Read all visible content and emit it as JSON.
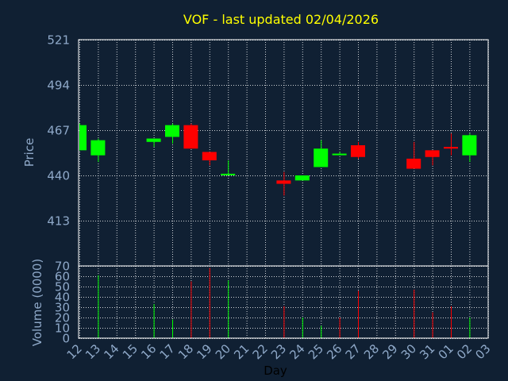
{
  "colors": {
    "background": "#102033",
    "plot_border": "#ffffff",
    "grid": "#ffffff",
    "up": "#00ff00",
    "down": "#ff0000",
    "title": "#ffff00",
    "axis_text": "#8fa9c9"
  },
  "chart_data": [
    {
      "type": "candlestick",
      "title": "VOF - last updated 02/04/2026",
      "ylabel": "Price",
      "yticks": [
        521,
        494,
        467,
        440,
        413
      ],
      "ylim": [
        386,
        521
      ],
      "grid": true,
      "candles": [
        {
          "day": "12",
          "open": 455,
          "high": 471,
          "low": 455,
          "close": 470
        },
        {
          "day": "13",
          "open": 452,
          "high": 462,
          "low": 448,
          "close": 461
        },
        {
          "day": "16",
          "open": 460,
          "high": 462,
          "low": 457,
          "close": 462
        },
        {
          "day": "17",
          "open": 463,
          "high": 471,
          "low": 459,
          "close": 470
        },
        {
          "day": "18",
          "open": 470,
          "high": 471,
          "low": 456,
          "close": 456
        },
        {
          "day": "19",
          "open": 454,
          "high": 454,
          "low": 446,
          "close": 449
        },
        {
          "day": "20",
          "open": 441,
          "high": 449,
          "low": 440,
          "close": 441
        },
        {
          "day": "23",
          "open": 437,
          "high": 442,
          "low": 428,
          "close": 435
        },
        {
          "day": "24",
          "open": 437,
          "high": 440,
          "low": 437,
          "close": 440
        },
        {
          "day": "25",
          "open": 445,
          "high": 461,
          "low": 445,
          "close": 456
        },
        {
          "day": "26",
          "open": 453,
          "high": 454,
          "low": 452,
          "close": 453
        },
        {
          "day": "27",
          "open": 458,
          "high": 460,
          "low": 450,
          "close": 451
        },
        {
          "day": "30",
          "open": 450,
          "high": 460,
          "low": 444,
          "close": 444
        },
        {
          "day": "31",
          "open": 455,
          "high": 455,
          "low": 446,
          "close": 451
        },
        {
          "day": "01",
          "open": 457,
          "high": 465,
          "low": 452,
          "close": 456
        },
        {
          "day": "02",
          "open": 452,
          "high": 465,
          "low": 448,
          "close": 464
        }
      ]
    },
    {
      "type": "bar",
      "ylabel": "Volume (0000)",
      "xlabel": "Day",
      "yticks": [
        70,
        60,
        50,
        40,
        30,
        20,
        10,
        0
      ],
      "ylim": [
        0,
        70
      ],
      "grid": true,
      "categories": [
        "12",
        "13",
        "14",
        "15",
        "16",
        "17",
        "18",
        "19",
        "20",
        "21",
        "22",
        "23",
        "24",
        "25",
        "26",
        "27",
        "28",
        "29",
        "30",
        "31",
        "01",
        "02",
        "03"
      ],
      "values": [
        null,
        61,
        null,
        null,
        33,
        18,
        55,
        68,
        56,
        null,
        null,
        31,
        20,
        12,
        20,
        46,
        null,
        null,
        47,
        25,
        31,
        20,
        null
      ],
      "bar_direction": [
        null,
        "up",
        null,
        null,
        "up",
        "up",
        "down",
        "down",
        "up",
        null,
        null,
        "down",
        "up",
        "up",
        "down",
        "down",
        null,
        null,
        "down",
        "down",
        "down",
        "up",
        null
      ]
    }
  ]
}
